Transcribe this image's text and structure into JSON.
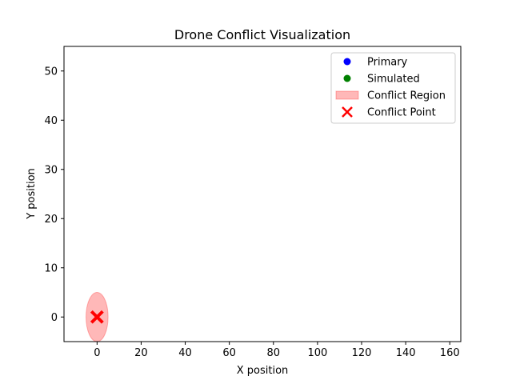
{
  "chart_data": {
    "type": "scatter",
    "title": "Drone Conflict Visualization",
    "xlabel": "X position",
    "ylabel": "Y position",
    "xlim": [
      -15,
      165
    ],
    "ylim": [
      -5,
      55
    ],
    "xticks": [
      0,
      20,
      40,
      60,
      80,
      100,
      120,
      140,
      160
    ],
    "yticks": [
      0,
      10,
      20,
      30,
      40,
      50
    ],
    "grid": false,
    "legend_position": "top-right",
    "series": [
      {
        "name": "Primary",
        "marker": "circle",
        "color": "#0000ff",
        "points": []
      },
      {
        "name": "Simulated",
        "marker": "circle",
        "color": "#008000",
        "points": []
      },
      {
        "name": "Conflict Region",
        "marker": "ellipse",
        "color": "#ff0000",
        "opacity": 0.28,
        "regions": [
          {
            "cx": 0,
            "cy": 0,
            "rx": 5,
            "ry": 5
          }
        ]
      },
      {
        "name": "Conflict Point",
        "marker": "x",
        "color": "#ff0000",
        "points": [
          {
            "x": 0,
            "y": 0
          }
        ]
      }
    ]
  }
}
